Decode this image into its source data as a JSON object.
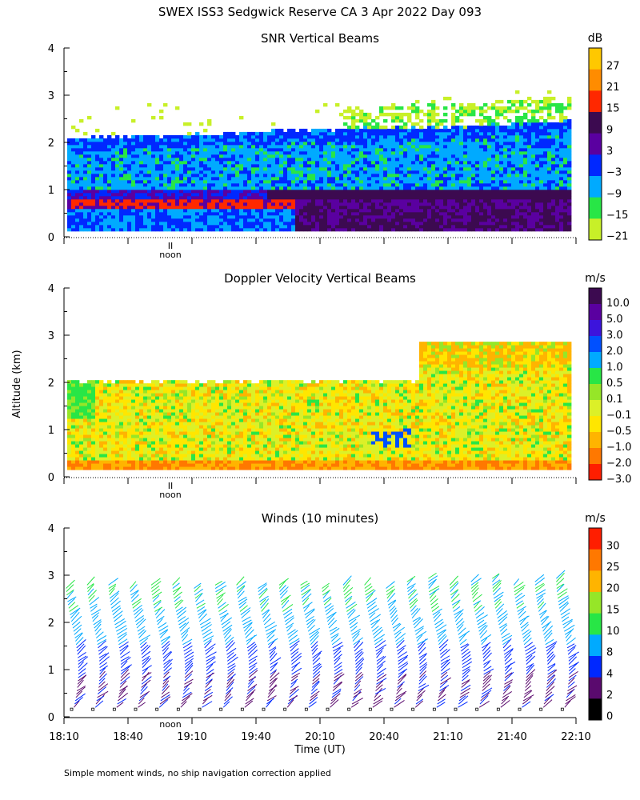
{
  "figure": {
    "title": "SWEX ISS3 Sedgwick Reserve CA   3 Apr 2022 Day 093",
    "ylabel": "Altitude (km)",
    "xlabel": "Time (UT)",
    "footnote": "Simple moment winds, no ship navigation correction applied",
    "noon_label": "noon",
    "noon_marker": "II"
  },
  "chart_data": [
    {
      "type": "heatmap",
      "title": "SNR Vertical Beams",
      "ylim": [
        0,
        4
      ],
      "yticks": [
        "0",
        "1",
        "2",
        "3",
        "4"
      ],
      "colorbar": {
        "unit": "dB",
        "labels": [
          "27",
          "21",
          "15",
          "9",
          "3",
          "−3",
          "−9",
          "−15",
          "−21"
        ],
        "colors": [
          "#ffc800",
          "#ff8c00",
          "#ff2800",
          "#3c0a50",
          "#5a00a0",
          "#0028ff",
          "#00aaff",
          "#28e646",
          "#c8f028"
        ]
      },
      "layers": [
        {
          "name": "strong band",
          "alt_low": 0.55,
          "alt_high": 0.75,
          "color": "#ff2800"
        },
        {
          "name": "lower layer",
          "alt_low": 0.1,
          "alt_high": 0.9,
          "color": "#3c0a50"
        },
        {
          "name": "mid layer",
          "alt_low": 0.9,
          "alt_high": 2.0,
          "color": "#00aaff"
        },
        {
          "name": "top layer",
          "alt_low": 2.0,
          "alt_high": 2.3,
          "color": "#0028ff"
        }
      ]
    },
    {
      "type": "heatmap",
      "title": "Doppler Velocity Vertical Beams",
      "ylim": [
        0,
        4
      ],
      "yticks": [
        "0",
        "1",
        "2",
        "3",
        "4"
      ],
      "colorbar": {
        "unit": "m/s",
        "labels": [
          "10.0",
          "5.0",
          "3.0",
          "2.0",
          "1.0",
          "0.5",
          "0.1",
          "−0.1",
          "−0.5",
          "−1.0",
          "−2.0",
          "−3.0"
        ],
        "colors": [
          "#3c0a50",
          "#5a00a0",
          "#3c14dc",
          "#0050ff",
          "#00aaff",
          "#28e646",
          "#96e628",
          "#dcf028",
          "#ffe600",
          "#ffb400",
          "#ff7800",
          "#ff1e00"
        ]
      }
    },
    {
      "type": "scatter",
      "title": "Winds (10 minutes)",
      "ylim": [
        0,
        4
      ],
      "yticks": [
        "0",
        "1",
        "2",
        "3",
        "4"
      ],
      "x_tick_labels": [
        "18:10",
        "18:40",
        "19:10",
        "19:40",
        "20:10",
        "20:40",
        "21:10",
        "21:40",
        "22:10"
      ],
      "x_range": [
        "18:10",
        "22:10"
      ],
      "profile_times": [
        "18:10",
        "18:20",
        "18:30",
        "18:40",
        "18:50",
        "19:00",
        "19:10",
        "19:20",
        "19:30",
        "19:40",
        "19:50",
        "20:00",
        "20:10",
        "20:20",
        "20:30",
        "20:40",
        "20:50",
        "21:00",
        "21:10",
        "21:20",
        "21:30",
        "21:40",
        "21:50",
        "22:00"
      ],
      "colorbar": {
        "unit": "m/s",
        "labels": [
          "30",
          "25",
          "20",
          "15",
          "10",
          "8",
          "4",
          "2",
          "0"
        ],
        "colors": [
          "#ff1e00",
          "#ff7800",
          "#ffb400",
          "#96e628",
          "#28e646",
          "#00aaff",
          "#0028ff",
          "#5a0a6e",
          "#000000"
        ]
      }
    }
  ]
}
